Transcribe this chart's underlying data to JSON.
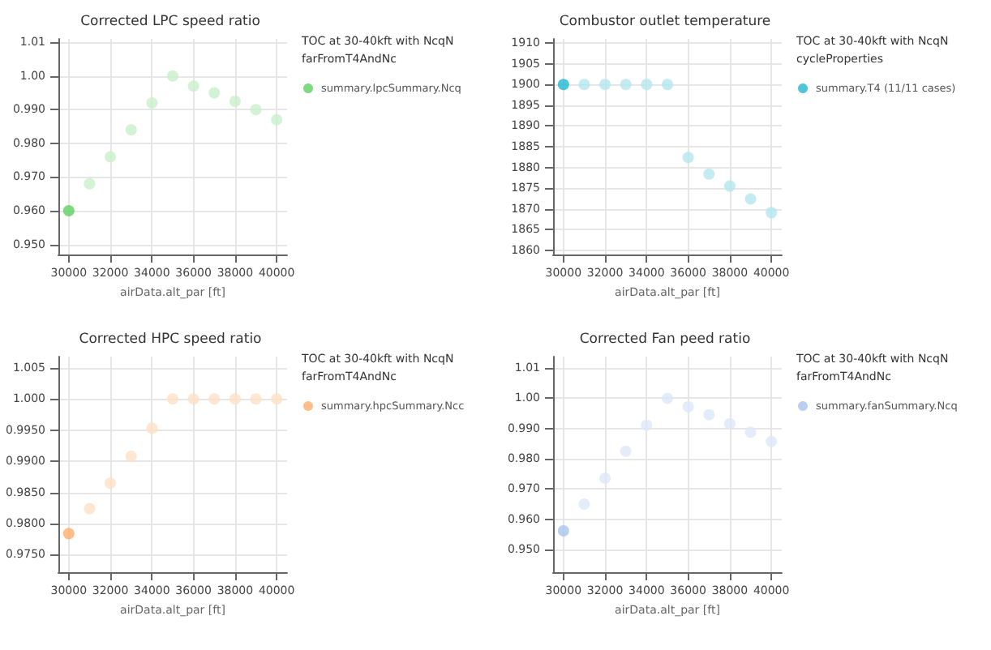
{
  "chart_data": [
    {
      "type": "scatter",
      "title": "Corrected LPC speed ratio",
      "xlabel": "airData.alt_par [ft]",
      "legend_title": "TOC at 30-40kft with NcqN farFromT4AndNc",
      "legend": "top right",
      "grid": true,
      "marker": "circle",
      "x": [
        30000,
        31000,
        32000,
        33000,
        34000,
        35000,
        36000,
        37000,
        38000,
        39000,
        40000
      ],
      "xlim": [
        29500,
        40500
      ],
      "xticks": [
        30000,
        32000,
        34000,
        36000,
        38000,
        40000
      ],
      "ylim": [
        0.947,
        1.011
      ],
      "yticks": [
        {
          "value": 0.95,
          "label": "0.950"
        },
        {
          "value": 0.96,
          "label": "0.960"
        },
        {
          "value": 0.97,
          "label": "0.970"
        },
        {
          "value": 0.98,
          "label": "0.980"
        },
        {
          "value": 0.99,
          "label": "0.990"
        },
        {
          "value": 1.0,
          "label": "1.00"
        },
        {
          "value": 1.01,
          "label": "1.01"
        }
      ],
      "series": [
        {
          "name": "summary.lpcSummary.Ncq",
          "color": "#5fcf5f",
          "colors": [
            "#5fcf5f",
            "#c9efc9",
            "#c9efc9",
            "#c9efc9",
            "#c9efc9",
            "#c9efc9",
            "#c9efc9",
            "#c9efc9",
            "#c9efc9",
            "#c9efc9",
            "#c9efc9"
          ],
          "values": [
            0.96,
            0.968,
            0.976,
            0.984,
            0.992,
            1.0,
            0.997,
            0.995,
            0.9925,
            0.99,
            0.987
          ]
        }
      ]
    },
    {
      "type": "scatter",
      "title": "Combustor outlet temperature",
      "xlabel": "airData.alt_par [ft]",
      "legend_title": "TOC at 30-40kft with NcqN cycleProperties",
      "legend": "top right",
      "grid": true,
      "marker": "circle",
      "x": [
        30000,
        31000,
        32000,
        33000,
        34000,
        35000,
        36000,
        37000,
        38000,
        39000,
        40000
      ],
      "xlim": [
        29500,
        40500
      ],
      "xticks": [
        30000,
        32000,
        34000,
        36000,
        38000,
        40000
      ],
      "ylim": [
        1859,
        1911
      ],
      "yticks": [
        1860,
        1865,
        1870,
        1875,
        1880,
        1885,
        1890,
        1895,
        1900,
        1905,
        1910
      ],
      "series": [
        {
          "name": "summary.T4 (11/11 cases)",
          "color": "#1fb8d0",
          "colors": [
            "#1fb8d0",
            "#b3e6ef",
            "#b3e6ef",
            "#b3e6ef",
            "#b3e6ef",
            "#b3e6ef",
            "#b3e6ef",
            "#b3e6ef",
            "#b3e6ef",
            "#b3e6ef",
            "#b3e6ef"
          ],
          "values": [
            1900,
            1900,
            1900,
            1900,
            1900,
            1900,
            1882.4,
            1878.4,
            1875.5,
            1872.4,
            1869.1
          ]
        }
      ]
    },
    {
      "type": "scatter",
      "title": "Corrected HPC speed ratio",
      "xlabel": "airData.alt_par [ft]",
      "legend_title": "TOC at 30-40kft with NcqN farFromT4AndNc",
      "legend": "top right",
      "grid": true,
      "marker": "circle",
      "x": [
        30000,
        31000,
        32000,
        33000,
        34000,
        35000,
        36000,
        37000,
        38000,
        39000,
        40000
      ],
      "xlim": [
        29500,
        40500
      ],
      "xticks": [
        30000,
        32000,
        34000,
        36000,
        38000,
        40000
      ],
      "ylim": [
        0.9722,
        1.0068
      ],
      "yticks": [
        {
          "value": 0.975,
          "label": "0.9750"
        },
        {
          "value": 0.98,
          "label": "0.9800"
        },
        {
          "value": 0.985,
          "label": "0.9850"
        },
        {
          "value": 0.99,
          "label": "0.9900"
        },
        {
          "value": 0.995,
          "label": "0.9950"
        },
        {
          "value": 1.0,
          "label": "1.000"
        },
        {
          "value": 1.005,
          "label": "1.005"
        }
      ],
      "series": [
        {
          "name": "summary.hpcSummary.Ncc",
          "color": "#ffac6b",
          "colors": [
            "#ffac6b",
            "#ffe0c6",
            "#ffe0c6",
            "#ffe0c6",
            "#ffe0c6",
            "#ffe0c6",
            "#ffe0c6",
            "#ffe0c6",
            "#ffe0c6",
            "#ffe0c6",
            "#ffe0c6"
          ],
          "values": [
            0.9784,
            0.9824,
            0.9865,
            0.9908,
            0.9953,
            1.0,
            1.0,
            1.0,
            1.0,
            1.0,
            1.0
          ]
        }
      ]
    },
    {
      "type": "scatter",
      "title": "Corrected Fan peed ratio",
      "xlabel": "airData.alt_par [ft]",
      "legend_title": "TOC at 30-40kft with NcqN farFromT4AndNc",
      "legend": "top right",
      "grid": true,
      "marker": "circle",
      "x": [
        30000,
        31000,
        32000,
        33000,
        34000,
        35000,
        36000,
        37000,
        38000,
        39000,
        40000
      ],
      "xlim": [
        29500,
        40500
      ],
      "xticks": [
        30000,
        32000,
        34000,
        36000,
        38000,
        40000
      ],
      "ylim": [
        0.9425,
        1.0138
      ],
      "yticks": [
        {
          "value": 0.95,
          "label": "0.950"
        },
        {
          "value": 0.96,
          "label": "0.960"
        },
        {
          "value": 0.97,
          "label": "0.970"
        },
        {
          "value": 0.98,
          "label": "0.980"
        },
        {
          "value": 0.99,
          "label": "0.990"
        },
        {
          "value": 1.0,
          "label": "1.00"
        },
        {
          "value": 1.01,
          "label": "1.01"
        }
      ],
      "series": [
        {
          "name": "summary.fanSummary.Ncq",
          "color": "#a9c4ec",
          "colors": [
            "#a9c4ec",
            "#dde7f7",
            "#dde7f7",
            "#dde7f7",
            "#dde7f7",
            "#dde7f7",
            "#dde7f7",
            "#dde7f7",
            "#dde7f7",
            "#dde7f7",
            "#dde7f7"
          ],
          "values": [
            0.9562,
            0.965,
            0.9736,
            0.9825,
            0.9911,
            1.0,
            0.9972,
            0.9946,
            0.9916,
            0.9888,
            0.9857
          ]
        }
      ]
    }
  ]
}
